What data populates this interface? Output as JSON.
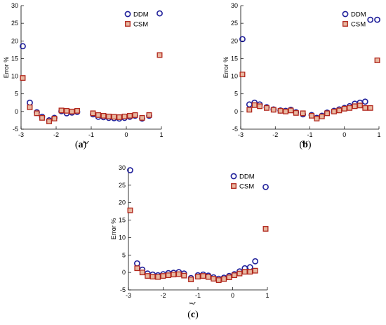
{
  "chart_data": [
    {
      "type": "scatter",
      "panel_label": "a",
      "xlabel": "ξ",
      "ylabel": "Error %",
      "xlim": [
        -3,
        1
      ],
      "ylim": [
        -5,
        30
      ],
      "xticks": [
        -3,
        -2,
        -1,
        0,
        1
      ],
      "yticks": [
        -5,
        0,
        5,
        10,
        15,
        20,
        25,
        30
      ],
      "legend_placement": "top-right",
      "series": [
        {
          "name": "DDM",
          "marker": "circle",
          "color": "#1f1f9a",
          "x": [
            -2.95,
            -2.75,
            -2.55,
            -2.4,
            -2.2,
            -2.05,
            -1.85,
            -1.7,
            -1.55,
            -1.4,
            -0.95,
            -0.8,
            -0.65,
            -0.5,
            -0.35,
            -0.2,
            -0.05,
            0.1,
            0.25,
            0.45,
            0.65,
            0.95
          ],
          "y": [
            18.5,
            2.5,
            -0.2,
            -1.5,
            -2.5,
            -1.8,
            0.1,
            -0.5,
            -0.3,
            -0.1,
            -0.8,
            -1.5,
            -1.6,
            -1.8,
            -1.9,
            -2.0,
            -1.8,
            -1.5,
            -1.2,
            -2.0,
            -1.2,
            27.8
          ]
        },
        {
          "name": "CSM",
          "marker": "square",
          "color": "#b0251b",
          "x": [
            -2.95,
            -2.75,
            -2.55,
            -2.4,
            -2.2,
            -2.05,
            -1.85,
            -1.7,
            -1.55,
            -1.4,
            -0.95,
            -0.8,
            -0.65,
            -0.5,
            -0.35,
            -0.2,
            -0.05,
            0.1,
            0.25,
            0.45,
            0.65,
            0.95
          ],
          "y": [
            9.5,
            1.2,
            -0.5,
            -1.8,
            -2.8,
            -2.0,
            0.3,
            0.2,
            0.0,
            0.2,
            -0.5,
            -1.0,
            -1.2,
            -1.4,
            -1.5,
            -1.6,
            -1.4,
            -1.2,
            -1.0,
            -1.8,
            -1.0,
            16.0
          ]
        }
      ]
    },
    {
      "type": "scatter",
      "panel_label": "b",
      "xlabel": "ξ",
      "ylabel": "Error %",
      "xlim": [
        -3,
        1
      ],
      "ylim": [
        -5,
        30
      ],
      "xticks": [
        -3,
        -2,
        -1,
        0,
        1
      ],
      "yticks": [
        -5,
        0,
        5,
        10,
        15,
        20,
        25,
        30
      ],
      "legend_placement": "top-right",
      "series": [
        {
          "name": "DDM",
          "marker": "circle",
          "color": "#1f1f9a",
          "x": [
            -2.95,
            -2.75,
            -2.6,
            -2.45,
            -2.25,
            -2.05,
            -1.85,
            -1.7,
            -1.55,
            -1.4,
            -1.2,
            -0.95,
            -0.8,
            -0.65,
            -0.5,
            -0.3,
            -0.15,
            0.0,
            0.15,
            0.3,
            0.45,
            0.6,
            0.75,
            0.95
          ],
          "y": [
            20.5,
            2.0,
            2.5,
            2.0,
            1.2,
            0.6,
            0.3,
            0.2,
            0.5,
            -0.2,
            -0.8,
            -1.0,
            -1.8,
            -1.2,
            -0.3,
            0.2,
            0.6,
            1.0,
            1.5,
            2.2,
            2.5,
            2.8,
            26.0,
            26.0
          ]
        },
        {
          "name": "CSM",
          "marker": "square",
          "color": "#b0251b",
          "x": [
            -2.95,
            -2.75,
            -2.6,
            -2.45,
            -2.25,
            -2.05,
            -1.85,
            -1.7,
            -1.55,
            -1.4,
            -1.2,
            -0.95,
            -0.8,
            -0.65,
            -0.5,
            -0.3,
            -0.15,
            0.0,
            0.15,
            0.3,
            0.45,
            0.6,
            0.75,
            0.95
          ],
          "y": [
            10.5,
            0.5,
            1.8,
            1.5,
            1.0,
            0.5,
            0.2,
            0.0,
            0.3,
            -0.4,
            -0.5,
            -1.2,
            -2.0,
            -1.4,
            -0.5,
            0.0,
            0.3,
            0.8,
            1.0,
            1.5,
            1.7,
            1.0,
            1.0,
            14.5
          ]
        }
      ]
    },
    {
      "type": "scatter",
      "panel_label": "c",
      "xlabel": "ξ",
      "ylabel": "Error %",
      "xlim": [
        -3,
        1
      ],
      "ylim": [
        -5,
        30
      ],
      "xticks": [
        -3,
        -2,
        -1,
        0,
        1
      ],
      "yticks": [
        -5,
        0,
        5,
        10,
        15,
        20,
        25,
        30
      ],
      "legend_placement": "top-right",
      "series": [
        {
          "name": "DDM",
          "marker": "circle",
          "color": "#1f1f9a",
          "x": [
            -2.95,
            -2.75,
            -2.6,
            -2.45,
            -2.3,
            -2.15,
            -2.0,
            -1.85,
            -1.7,
            -1.55,
            -1.4,
            -1.2,
            -1.0,
            -0.85,
            -0.7,
            -0.55,
            -0.4,
            -0.25,
            -0.1,
            0.05,
            0.2,
            0.35,
            0.5,
            0.65,
            0.95
          ],
          "y": [
            29.3,
            2.6,
            0.8,
            -0.3,
            -0.6,
            -0.8,
            -0.5,
            -0.2,
            -0.1,
            0.1,
            -0.3,
            -1.6,
            -0.8,
            -0.6,
            -0.9,
            -1.4,
            -1.8,
            -1.5,
            -1.0,
            -0.5,
            0.3,
            1.2,
            1.5,
            3.2,
            24.5
          ]
        },
        {
          "name": "CSM",
          "marker": "square",
          "color": "#b0251b",
          "x": [
            -2.95,
            -2.75,
            -2.6,
            -2.45,
            -2.3,
            -2.15,
            -2.0,
            -1.85,
            -1.7,
            -1.55,
            -1.4,
            -1.2,
            -1.0,
            -0.85,
            -0.7,
            -0.55,
            -0.4,
            -0.25,
            -0.1,
            0.05,
            0.2,
            0.35,
            0.5,
            0.65,
            0.95
          ],
          "y": [
            17.8,
            1.2,
            0.0,
            -1.0,
            -1.2,
            -1.3,
            -1.0,
            -0.8,
            -0.6,
            -0.5,
            -0.9,
            -2.0,
            -1.2,
            -1.0,
            -1.3,
            -1.8,
            -2.2,
            -1.9,
            -1.4,
            -0.8,
            -0.3,
            0.2,
            0.2,
            0.5,
            12.5
          ]
        }
      ]
    }
  ]
}
